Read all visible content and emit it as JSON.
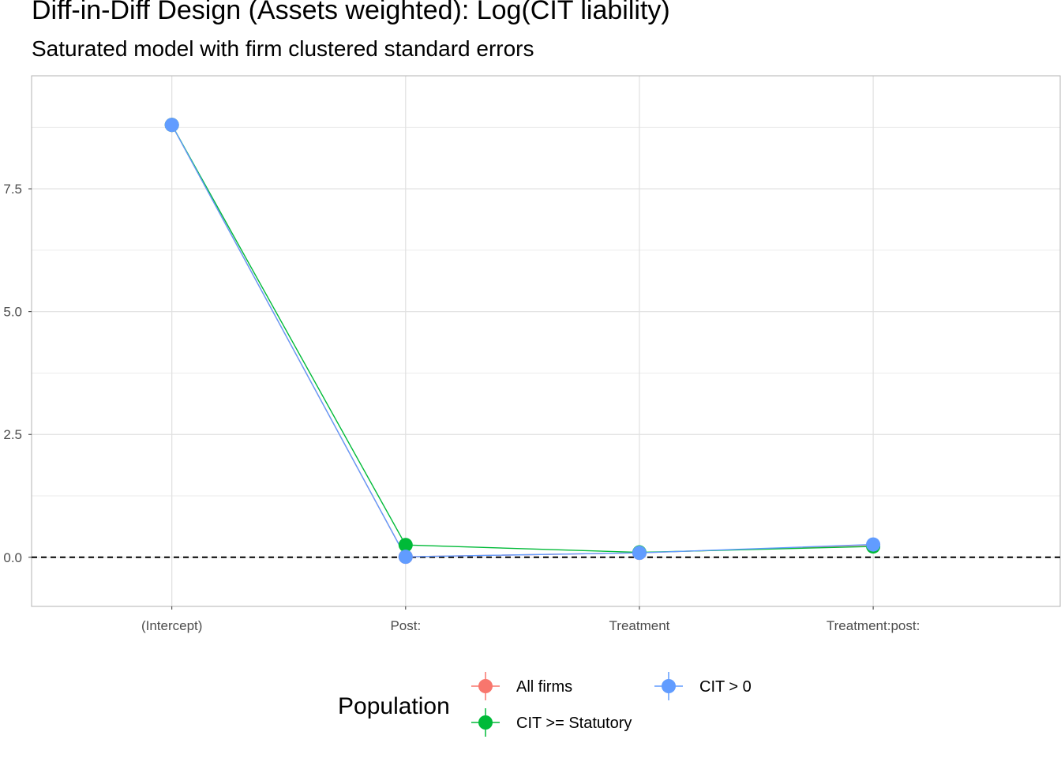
{
  "chart_data": {
    "type": "line",
    "title": "Diff-in-Diff Design (Assets weighted): Log(CIT liability)",
    "subtitle": "Saturated model with firm clustered standard errors",
    "categories": [
      "(Intercept)",
      "Post:",
      "Treatment",
      "Treatment:post:"
    ],
    "ylim": [
      -1.0,
      9.8
    ],
    "yticks": [
      0.0,
      2.5,
      5.0,
      7.5
    ],
    "ytick_labels": [
      "0.0",
      "2.5",
      "5.0",
      "7.5"
    ],
    "reference_line": 0,
    "grid": true,
    "legend": {
      "title": "Population",
      "position": "bottom"
    },
    "series": [
      {
        "name": "All firms",
        "color": "#F8766D",
        "values": [
          8.8,
          0.01,
          0.09,
          0.25
        ]
      },
      {
        "name": "CIT >= Statutory",
        "color": "#00BA38",
        "values": [
          8.8,
          0.25,
          0.1,
          0.22
        ]
      },
      {
        "name": "CIT > 0",
        "color": "#619CFF",
        "values": [
          8.8,
          0.01,
          0.09,
          0.26
        ]
      }
    ]
  }
}
